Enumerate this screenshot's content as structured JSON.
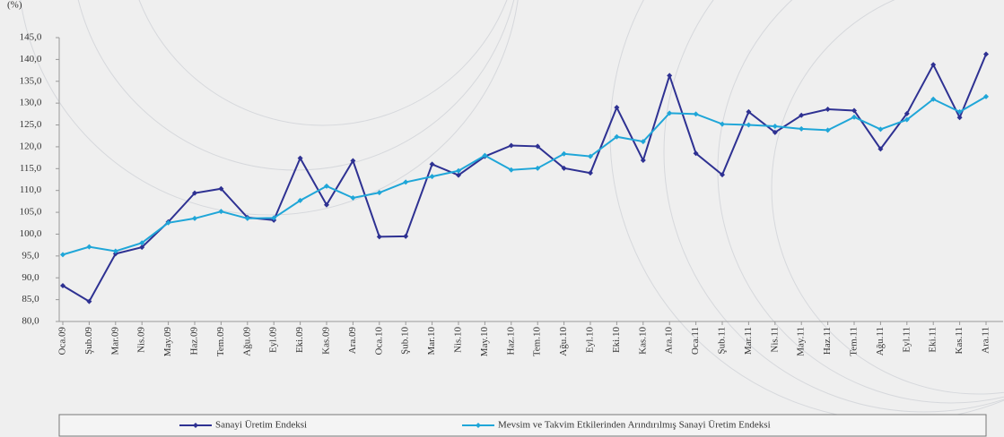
{
  "chart_data": {
    "type": "line",
    "ylabel": "(%)",
    "categories": [
      "Oca.09",
      "Şub.09",
      "Mar.09",
      "Nis.09",
      "May.09",
      "Haz.09",
      "Tem.09",
      "Ağu.09",
      "Eyl.09",
      "Eki.09",
      "Kas.09",
      "Ara.09",
      "Oca.10",
      "Şub.10",
      "Mar.10",
      "Nis.10",
      "May.10",
      "Haz.10",
      "Tem.10",
      "Ağu.10",
      "Eyl.10",
      "Eki.10",
      "Kas.10",
      "Ara.10",
      "Oca.11",
      "Şub.11",
      "Mar.11",
      "Nis.11",
      "May.11",
      "Haz.11",
      "Tem.11",
      "Ağu.11",
      "Eyl.11",
      "Eki.11",
      "Kas.11",
      "Ara.11"
    ],
    "series": [
      {
        "name": "Sanayi Üretim Endeksi",
        "color": "#2e3192",
        "values": [
          88.2,
          84.6,
          95.5,
          97.0,
          102.8,
          109.4,
          110.4,
          103.8,
          103.2,
          117.4,
          106.7,
          116.8,
          99.4,
          99.5,
          116.0,
          113.5,
          117.8,
          120.3,
          120.1,
          115.1,
          114.0,
          129.0,
          116.9,
          136.3,
          118.5,
          113.6,
          128.0,
          123.3,
          127.2,
          128.6,
          128.3,
          119.5,
          127.6,
          138.8,
          126.7,
          141.2
        ]
      },
      {
        "name": "Mevsim ve Takvim Etkilerinden Arındırılmış Sanayi Üretim Endeksi",
        "color": "#1fa6d8",
        "values": [
          95.3,
          97.1,
          96.1,
          98.0,
          102.6,
          103.6,
          105.2,
          103.6,
          103.7,
          107.7,
          111.0,
          108.3,
          109.5,
          111.9,
          113.2,
          114.5,
          118.0,
          114.7,
          115.1,
          118.4,
          117.8,
          122.3,
          121.2,
          127.7,
          127.5,
          125.2,
          125.0,
          124.7,
          124.1,
          123.8,
          126.8,
          124.0,
          126.2,
          130.9,
          128.0,
          131.5
        ]
      }
    ],
    "ylim": [
      80,
      145
    ],
    "yticks": [
      {
        "value": 80,
        "label": "80,0"
      },
      {
        "value": 85,
        "label": "85,0"
      },
      {
        "value": 90,
        "label": "90,0"
      },
      {
        "value": 95,
        "label": "95,0"
      },
      {
        "value": 100,
        "label": "100,0"
      },
      {
        "value": 105,
        "label": "105,0"
      },
      {
        "value": 110,
        "label": "110,0"
      },
      {
        "value": 115,
        "label": "115,0"
      },
      {
        "value": 120,
        "label": "120,0"
      },
      {
        "value": 125,
        "label": "125,0"
      },
      {
        "value": 130,
        "label": "130,0"
      },
      {
        "value": 135,
        "label": "135,0"
      },
      {
        "value": 140,
        "label": "140,0"
      },
      {
        "value": 145,
        "label": "145,0"
      }
    ]
  }
}
